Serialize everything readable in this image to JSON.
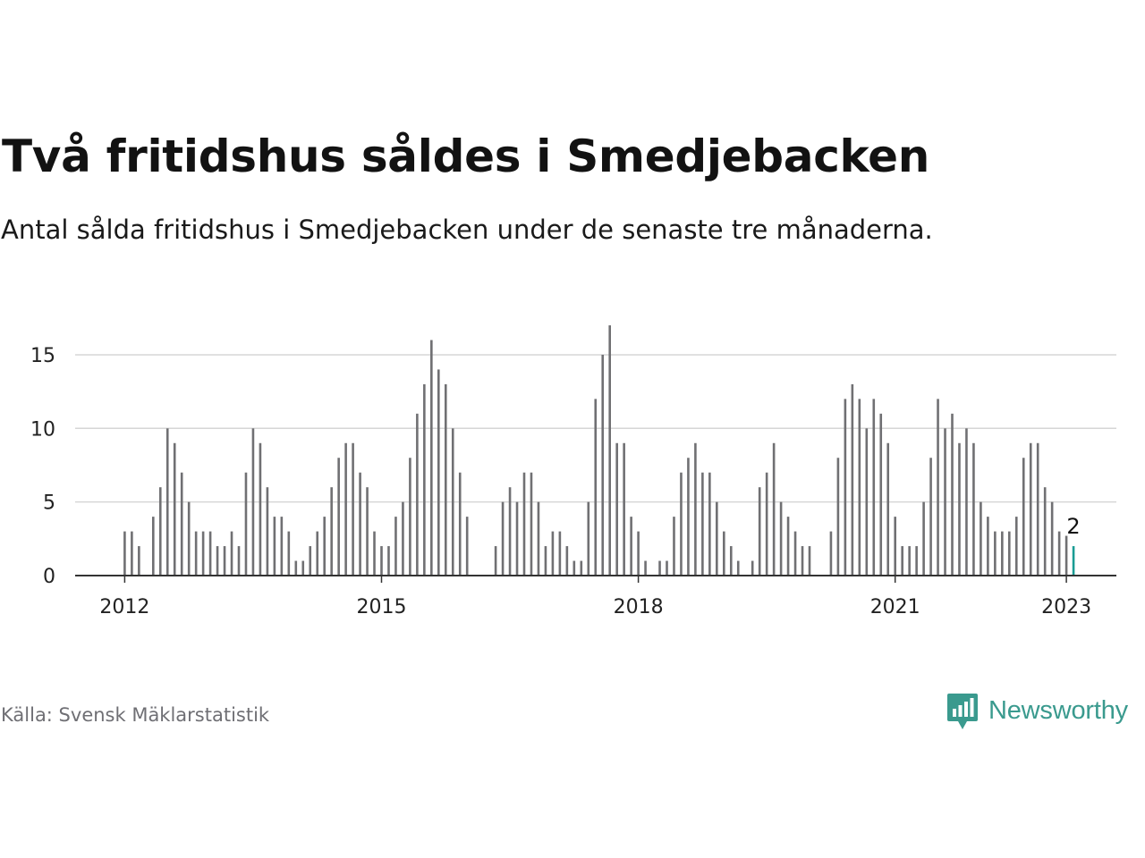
{
  "title": "Två fritidshus såldes i Smedjebacken",
  "subtitle": "Antal sålda fritidshus i Smedjebacken under de senaste tre månaderna.",
  "source": "Källa: Svensk Mäklarstatistik",
  "brand": {
    "name": "Newsworthy",
    "icon": "newsworthy-logo-icon",
    "color": "#3a9a8e"
  },
  "colors": {
    "bars": "#707073",
    "highlight": "#1a9c94",
    "grid": "#d6d6d6",
    "axis": "#333333",
    "text": "#222222"
  },
  "chart_data": {
    "type": "bar",
    "x_start": "2012-01",
    "x_end": "2023-01",
    "ylim": [
      0,
      17
    ],
    "yticks": [
      0,
      5,
      10,
      15
    ],
    "xticks": [
      "2012",
      "2015",
      "2018",
      "2021",
      "2023"
    ],
    "grid": true,
    "values": [
      3,
      3,
      2,
      0,
      4,
      6,
      10,
      9,
      7,
      5,
      3,
      3,
      3,
      2,
      2,
      3,
      2,
      7,
      10,
      9,
      6,
      4,
      4,
      3,
      1,
      1,
      2,
      3,
      4,
      6,
      8,
      9,
      9,
      7,
      6,
      3,
      2,
      2,
      4,
      5,
      8,
      11,
      13,
      16,
      14,
      13,
      10,
      7,
      4,
      0,
      0,
      0,
      2,
      5,
      6,
      5,
      7,
      7,
      5,
      2,
      3,
      3,
      2,
      1,
      1,
      5,
      12,
      15,
      17,
      9,
      9,
      4,
      3,
      1,
      0,
      1,
      1,
      4,
      7,
      8,
      9,
      7,
      7,
      5,
      3,
      2,
      1,
      0,
      1,
      6,
      7,
      9,
      5,
      4,
      3,
      2,
      2,
      0,
      0,
      3,
      8,
      12,
      13,
      12,
      10,
      12,
      11,
      9,
      4,
      2,
      2,
      2,
      5,
      8,
      12,
      10,
      11,
      9,
      10,
      9,
      5,
      4,
      3,
      3,
      3,
      4,
      8,
      9,
      9,
      6,
      5,
      3,
      2.7,
      2
    ],
    "highlight_label": "2"
  }
}
